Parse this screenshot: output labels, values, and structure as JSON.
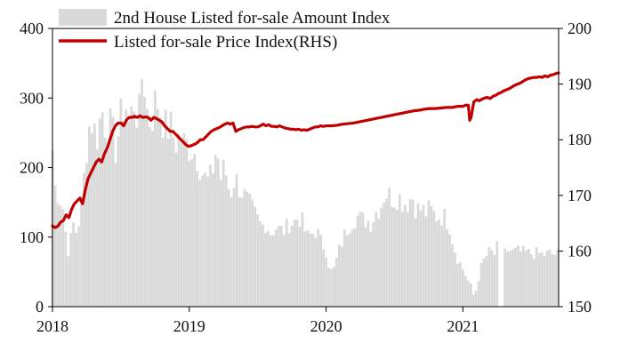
{
  "chart_data": {
    "type": "bar+line",
    "legend": [
      {
        "label": "2nd House Listed for-sale Amount Index",
        "kind": "bar",
        "color": "#d9d9d9"
      },
      {
        "label": "Listed for-sale Price Index(RHS)",
        "kind": "line",
        "color": "#c00000"
      }
    ],
    "legend_position": "top-left",
    "x_axis": {
      "ticks": [
        "2018",
        "2019",
        "2020",
        "2021"
      ],
      "range": [
        2018.0,
        2021.7
      ]
    },
    "y_left": {
      "ticks": [
        "0",
        "100",
        "200",
        "300",
        "400"
      ],
      "range": [
        0,
        400
      ]
    },
    "y_right": {
      "ticks": [
        "150",
        "160",
        "170",
        "180",
        "190",
        "200"
      ],
      "range": [
        150,
        200
      ]
    },
    "bars": {
      "name": "2nd House Listed for-sale Amount Index",
      "keypoints": [
        [
          2018.0,
          225
        ],
        [
          2018.02,
          170
        ],
        [
          2018.05,
          160
        ],
        [
          2018.08,
          140
        ],
        [
          2018.1,
          100
        ],
        [
          2018.12,
          75
        ],
        [
          2018.15,
          120
        ],
        [
          2018.18,
          105
        ],
        [
          2018.22,
          160
        ],
        [
          2018.25,
          230
        ],
        [
          2018.28,
          275
        ],
        [
          2018.3,
          255
        ],
        [
          2018.33,
          245
        ],
        [
          2018.36,
          285
        ],
        [
          2018.4,
          250
        ],
        [
          2018.43,
          260
        ],
        [
          2018.46,
          225
        ],
        [
          2018.5,
          270
        ],
        [
          2018.53,
          300
        ],
        [
          2018.56,
          260
        ],
        [
          2018.6,
          300
        ],
        [
          2018.63,
          260
        ],
        [
          2018.66,
          350
        ],
        [
          2018.7,
          265
        ],
        [
          2018.73,
          275
        ],
        [
          2018.76,
          300
        ],
        [
          2018.8,
          275
        ],
        [
          2018.83,
          255
        ],
        [
          2018.86,
          260
        ],
        [
          2018.9,
          235
        ],
        [
          2018.93,
          245
        ],
        [
          2018.96,
          235
        ],
        [
          2019.0,
          230
        ],
        [
          2019.03,
          225
        ],
        [
          2019.06,
          215
        ],
        [
          2019.1,
          190
        ],
        [
          2019.13,
          180
        ],
        [
          2019.16,
          185
        ],
        [
          2019.2,
          230
        ],
        [
          2019.23,
          185
        ],
        [
          2019.26,
          200
        ],
        [
          2019.3,
          160
        ],
        [
          2019.33,
          185
        ],
        [
          2019.36,
          175
        ],
        [
          2019.4,
          160
        ],
        [
          2019.43,
          150
        ],
        [
          2019.46,
          140
        ],
        [
          2019.5,
          125
        ],
        [
          2019.53,
          115
        ],
        [
          2019.56,
          120
        ],
        [
          2019.6,
          105
        ],
        [
          2019.63,
          115
        ],
        [
          2019.66,
          110
        ],
        [
          2019.7,
          110
        ],
        [
          2019.73,
          120
        ],
        [
          2019.76,
          120
        ],
        [
          2019.8,
          130
        ],
        [
          2019.83,
          120
        ],
        [
          2019.86,
          100
        ],
        [
          2019.9,
          105
        ],
        [
          2019.93,
          110
        ],
        [
          2019.96,
          95
        ],
        [
          2020.0,
          80
        ],
        [
          2020.03,
          50
        ],
        [
          2020.06,
          55
        ],
        [
          2020.1,
          85
        ],
        [
          2020.13,
          100
        ],
        [
          2020.16,
          115
        ],
        [
          2020.2,
          125
        ],
        [
          2020.23,
          130
        ],
        [
          2020.26,
          125
        ],
        [
          2020.3,
          125
        ],
        [
          2020.33,
          120
        ],
        [
          2020.36,
          135
        ],
        [
          2020.4,
          145
        ],
        [
          2020.43,
          165
        ],
        [
          2020.46,
          160
        ],
        [
          2020.5,
          155
        ],
        [
          2020.53,
          160
        ],
        [
          2020.56,
          150
        ],
        [
          2020.6,
          150
        ],
        [
          2020.63,
          160
        ],
        [
          2020.66,
          140
        ],
        [
          2020.7,
          140
        ],
        [
          2020.73,
          135
        ],
        [
          2020.76,
          140
        ],
        [
          2020.8,
          130
        ],
        [
          2020.83,
          130
        ],
        [
          2020.86,
          130
        ],
        [
          2020.9,
          120
        ],
        [
          2020.93,
          90
        ],
        [
          2020.96,
          70
        ],
        [
          2021.0,
          55
        ],
        [
          2021.03,
          40
        ],
        [
          2021.06,
          30
        ],
        [
          2021.08,
          15
        ],
        [
          2021.1,
          25
        ],
        [
          2021.13,
          55
        ],
        [
          2021.16,
          70
        ],
        [
          2021.2,
          80
        ],
        [
          2021.23,
          75
        ],
        [
          2021.26,
          90
        ],
        [
          2021.28,
          0
        ],
        [
          2021.3,
          75
        ],
        [
          2021.33,
          82
        ],
        [
          2021.36,
          78
        ],
        [
          2021.4,
          80
        ],
        [
          2021.43,
          78
        ],
        [
          2021.46,
          78
        ],
        [
          2021.5,
          76
        ],
        [
          2021.53,
          77
        ],
        [
          2021.56,
          76
        ],
        [
          2021.6,
          75
        ],
        [
          2021.63,
          77
        ],
        [
          2021.66,
          75
        ],
        [
          2021.7,
          75
        ]
      ]
    },
    "line": {
      "name": "Listed for-sale Price Index(RHS)",
      "axis": "right",
      "points": [
        [
          2018.0,
          164.5
        ],
        [
          2018.02,
          164.2
        ],
        [
          2018.04,
          164.5
        ],
        [
          2018.06,
          165.2
        ],
        [
          2018.08,
          165.5
        ],
        [
          2018.1,
          166.5
        ],
        [
          2018.12,
          166.0
        ],
        [
          2018.14,
          167.5
        ],
        [
          2018.16,
          168.5
        ],
        [
          2018.18,
          169.0
        ],
        [
          2018.2,
          169.5
        ],
        [
          2018.22,
          168.5
        ],
        [
          2018.24,
          171.0
        ],
        [
          2018.26,
          173.0
        ],
        [
          2018.28,
          174.0
        ],
        [
          2018.3,
          175.0
        ],
        [
          2018.32,
          176.0
        ],
        [
          2018.34,
          176.5
        ],
        [
          2018.36,
          176.0
        ],
        [
          2018.38,
          177.5
        ],
        [
          2018.4,
          178.5
        ],
        [
          2018.42,
          180.0
        ],
        [
          2018.44,
          181.5
        ],
        [
          2018.46,
          182.5
        ],
        [
          2018.48,
          183.0
        ],
        [
          2018.5,
          183.0
        ],
        [
          2018.52,
          182.5
        ],
        [
          2018.54,
          183.5
        ],
        [
          2018.56,
          184.0
        ],
        [
          2018.58,
          184.0
        ],
        [
          2018.6,
          184.2
        ],
        [
          2018.62,
          184.0
        ],
        [
          2018.64,
          184.3
        ],
        [
          2018.66,
          184.0
        ],
        [
          2018.68,
          184.1
        ],
        [
          2018.7,
          184.0
        ],
        [
          2018.72,
          183.5
        ],
        [
          2018.74,
          184.0
        ],
        [
          2018.76,
          183.8
        ],
        [
          2018.78,
          183.5
        ],
        [
          2018.8,
          183.2
        ],
        [
          2018.82,
          182.5
        ],
        [
          2018.84,
          182.0
        ],
        [
          2018.86,
          181.5
        ],
        [
          2018.88,
          181.5
        ],
        [
          2018.9,
          181.0
        ],
        [
          2018.92,
          180.5
        ],
        [
          2018.94,
          180.0
        ],
        [
          2018.96,
          179.5
        ],
        [
          2018.98,
          179.0
        ],
        [
          2019.0,
          178.8
        ],
        [
          2019.02,
          179.0
        ],
        [
          2019.04,
          179.2
        ],
        [
          2019.06,
          179.5
        ],
        [
          2019.08,
          180.0
        ],
        [
          2019.1,
          180.0
        ],
        [
          2019.12,
          180.5
        ],
        [
          2019.14,
          181.0
        ],
        [
          2019.16,
          181.5
        ],
        [
          2019.18,
          181.8
        ],
        [
          2019.2,
          182.0
        ],
        [
          2019.22,
          182.2
        ],
        [
          2019.24,
          182.5
        ],
        [
          2019.26,
          182.8
        ],
        [
          2019.28,
          183.0
        ],
        [
          2019.3,
          182.8
        ],
        [
          2019.32,
          183.0
        ],
        [
          2019.34,
          181.5
        ],
        [
          2019.36,
          181.8
        ],
        [
          2019.38,
          182.0
        ],
        [
          2019.4,
          182.2
        ],
        [
          2019.42,
          182.3
        ],
        [
          2019.44,
          182.3
        ],
        [
          2019.46,
          182.4
        ],
        [
          2019.48,
          182.3
        ],
        [
          2019.5,
          182.3
        ],
        [
          2019.52,
          182.5
        ],
        [
          2019.54,
          182.8
        ],
        [
          2019.56,
          182.5
        ],
        [
          2019.58,
          182.7
        ],
        [
          2019.6,
          182.4
        ],
        [
          2019.62,
          182.4
        ],
        [
          2019.64,
          182.3
        ],
        [
          2019.66,
          182.5
        ],
        [
          2019.68,
          182.3
        ],
        [
          2019.7,
          182.1
        ],
        [
          2019.72,
          182.0
        ],
        [
          2019.74,
          181.9
        ],
        [
          2019.76,
          181.9
        ],
        [
          2019.78,
          181.8
        ],
        [
          2019.8,
          181.9
        ],
        [
          2019.82,
          181.7
        ],
        [
          2019.84,
          181.8
        ],
        [
          2019.86,
          181.7
        ],
        [
          2019.88,
          181.9
        ],
        [
          2019.9,
          182.1
        ],
        [
          2019.92,
          182.3
        ],
        [
          2019.94,
          182.3
        ],
        [
          2019.96,
          182.5
        ],
        [
          2019.98,
          182.4
        ],
        [
          2020.0,
          182.5
        ],
        [
          2020.04,
          182.5
        ],
        [
          2020.08,
          182.6
        ],
        [
          2020.12,
          182.8
        ],
        [
          2020.16,
          182.9
        ],
        [
          2020.2,
          183.0
        ],
        [
          2020.24,
          183.2
        ],
        [
          2020.28,
          183.4
        ],
        [
          2020.32,
          183.6
        ],
        [
          2020.36,
          183.8
        ],
        [
          2020.4,
          184.0
        ],
        [
          2020.44,
          184.2
        ],
        [
          2020.48,
          184.4
        ],
        [
          2020.52,
          184.6
        ],
        [
          2020.56,
          184.8
        ],
        [
          2020.6,
          185.0
        ],
        [
          2020.64,
          185.2
        ],
        [
          2020.68,
          185.3
        ],
        [
          2020.72,
          185.5
        ],
        [
          2020.76,
          185.6
        ],
        [
          2020.8,
          185.6
        ],
        [
          2020.84,
          185.7
        ],
        [
          2020.88,
          185.8
        ],
        [
          2020.92,
          185.8
        ],
        [
          2020.96,
          186.0
        ],
        [
          2021.0,
          186.0
        ],
        [
          2021.02,
          186.2
        ],
        [
          2021.04,
          186.2
        ],
        [
          2021.05,
          183.5
        ],
        [
          2021.06,
          184.0
        ],
        [
          2021.08,
          186.8
        ],
        [
          2021.1,
          187.2
        ],
        [
          2021.12,
          187.0
        ],
        [
          2021.14,
          187.3
        ],
        [
          2021.16,
          187.5
        ],
        [
          2021.18,
          187.6
        ],
        [
          2021.2,
          187.4
        ],
        [
          2021.22,
          187.8
        ],
        [
          2021.24,
          188.0
        ],
        [
          2021.26,
          188.3
        ],
        [
          2021.28,
          188.5
        ],
        [
          2021.3,
          188.8
        ],
        [
          2021.32,
          189.0
        ],
        [
          2021.34,
          189.2
        ],
        [
          2021.36,
          189.5
        ],
        [
          2021.38,
          189.8
        ],
        [
          2021.4,
          190.0
        ],
        [
          2021.42,
          190.2
        ],
        [
          2021.44,
          190.5
        ],
        [
          2021.46,
          190.8
        ],
        [
          2021.48,
          191.0
        ],
        [
          2021.5,
          191.1
        ],
        [
          2021.52,
          191.2
        ],
        [
          2021.54,
          191.2
        ],
        [
          2021.56,
          191.3
        ],
        [
          2021.58,
          191.2
        ],
        [
          2021.6,
          191.5
        ],
        [
          2021.62,
          191.3
        ],
        [
          2021.64,
          191.6
        ],
        [
          2021.66,
          191.7
        ],
        [
          2021.68,
          191.9
        ],
        [
          2021.7,
          192.0
        ]
      ]
    },
    "grid": false
  }
}
